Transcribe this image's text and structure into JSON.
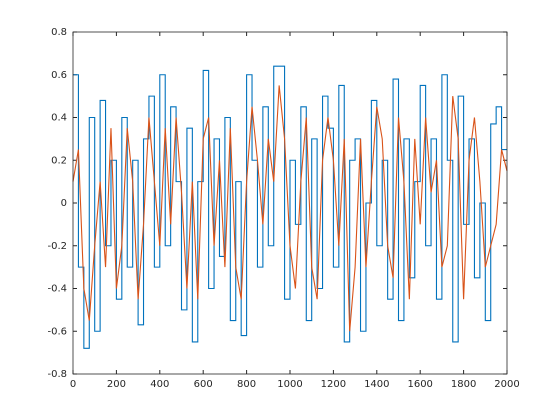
{
  "chart_data": {
    "type": "line",
    "x": [
      0,
      25,
      50,
      75,
      100,
      125,
      150,
      175,
      200,
      225,
      250,
      275,
      300,
      325,
      350,
      375,
      400,
      425,
      450,
      475,
      500,
      525,
      550,
      575,
      600,
      625,
      650,
      675,
      700,
      725,
      750,
      775,
      800,
      825,
      850,
      875,
      900,
      925,
      950,
      975,
      1000,
      1025,
      1050,
      1075,
      1100,
      1125,
      1150,
      1175,
      1200,
      1225,
      1250,
      1275,
      1300,
      1325,
      1350,
      1375,
      1400,
      1425,
      1450,
      1475,
      1500,
      1525,
      1550,
      1575,
      1600,
      1625,
      1650,
      1675,
      1700,
      1725,
      1750,
      1775,
      1800,
      1825,
      1850,
      1875,
      1900,
      1925,
      1950,
      1975,
      2000
    ],
    "series": [
      {
        "color": "#0072bd",
        "drawstyle": "steps",
        "values": [
          0.6,
          -0.3,
          -0.68,
          0.4,
          -0.6,
          0.48,
          -0.2,
          0.2,
          -0.45,
          0.4,
          -0.3,
          0.2,
          -0.57,
          0.3,
          0.5,
          -0.3,
          0.6,
          -0.2,
          0.45,
          0.1,
          -0.5,
          0.35,
          -0.65,
          0.1,
          0.62,
          -0.4,
          0.3,
          -0.25,
          0.4,
          -0.55,
          0.1,
          -0.62,
          0.6,
          0.2,
          -0.3,
          0.45,
          -0.2,
          0.64,
          0.64,
          -0.45,
          0.2,
          -0.1,
          0.45,
          -0.55,
          0.3,
          -0.4,
          0.5,
          0.35,
          -0.3,
          0.55,
          -0.65,
          0.2,
          0.3,
          -0.6,
          0,
          0.48,
          -0.2,
          0.2,
          -0.45,
          0.58,
          -0.55,
          0.3,
          -0.35,
          0.1,
          0.55,
          -0.2,
          0.3,
          -0.45,
          0.6,
          0.2,
          -0.65,
          0.5,
          -0.1,
          0.3,
          -0.35,
          0,
          -0.55,
          0.37,
          0.45,
          0.25,
          0.25
        ]
      },
      {
        "color": "#d95319",
        "drawstyle": "default",
        "values": [
          0.1,
          0.25,
          -0.4,
          -0.55,
          -0.2,
          0.1,
          -0.3,
          0.35,
          -0.4,
          -0.2,
          0.35,
          0.1,
          -0.45,
          -0.1,
          0.4,
          0.1,
          -0.2,
          0.35,
          -0.1,
          0.4,
          0.05,
          -0.4,
          0.1,
          -0.45,
          0.3,
          0.4,
          -0.2,
          0.2,
          -0.3,
          0.35,
          -0.3,
          -0.45,
          0.1,
          0.45,
          0.2,
          -0.1,
          0.3,
          0.1,
          0.55,
          0.3,
          -0.2,
          -0.4,
          0.1,
          0.4,
          -0.3,
          -0.45,
          0.2,
          0.4,
          0.2,
          -0.2,
          0.3,
          -0.6,
          -0.3,
          0.3,
          -0.3,
          0.1,
          0.45,
          0.3,
          -0.2,
          -0.35,
          0.4,
          0.1,
          -0.45,
          0.3,
          -0.1,
          0.4,
          0.05,
          0.2,
          -0.3,
          -0.2,
          0.5,
          0.3,
          -0.45,
          0.2,
          0.4,
          0.1,
          -0.3,
          -0.2,
          -0.1,
          0.25,
          0.15
        ]
      }
    ],
    "xlim": [
      0,
      2000
    ],
    "xticks": [
      0,
      200,
      400,
      600,
      800,
      1000,
      1200,
      1400,
      1600,
      1800,
      2000
    ],
    "ylim": [
      -0.8,
      0.8
    ],
    "yticks": [
      -0.8,
      -0.6,
      -0.4,
      -0.2,
      0,
      0.2,
      0.4,
      0.6,
      0.8
    ],
    "grid": false,
    "box": true
  }
}
